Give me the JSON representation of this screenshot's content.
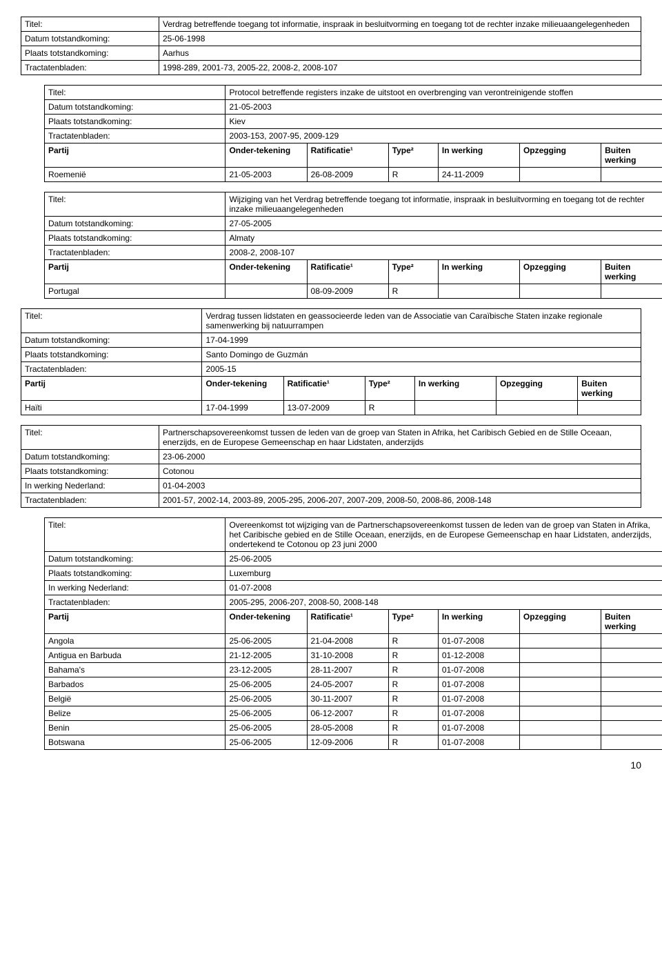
{
  "labels": {
    "titel": "Titel:",
    "datum": "Datum totstandkoming:",
    "plaats": "Plaats totstandkoming:",
    "tract": "Tractatenbladen:",
    "inwerkNL": "In werking Nederland:",
    "partij": "Partij",
    "onder": "Onder-tekening",
    "rat": "Ratificatie¹",
    "type": "Type²",
    "inwerk": "In werking",
    "opz": "Opzegging",
    "buiten": "Buiten werking"
  },
  "b1": {
    "titel": "Verdrag betreffende toegang tot informatie, inspraak in besluitvorming en toegang tot de rechter inzake milieuaangelegenheden",
    "datum": "25-06-1998",
    "plaats": "Aarhus",
    "tract": "1998-289, 2001-73, 2005-22, 2008-2, 2008-107"
  },
  "b1a": {
    "titel": "Protocol betreffende registers inzake de uitstoot en overbrenging van verontreinigende stoffen",
    "datum": "21-05-2003",
    "plaats": "Kiev",
    "tract": "2003-153, 2007-95, 2009-129",
    "rows": [
      {
        "p": "Roemenië",
        "o": "21-05-2003",
        "r": "26-08-2009",
        "t": "R",
        "i": "24-11-2009",
        "z": "",
        "b": ""
      }
    ]
  },
  "b1b": {
    "titel": "Wijziging van het Verdrag betreffende toegang tot informatie, inspraak in besluitvorming en toegang tot de rechter inzake milieuaangelegenheden",
    "datum": "27-05-2005",
    "plaats": "Almaty",
    "tract": "2008-2, 2008-107",
    "rows": [
      {
        "p": "Portugal",
        "o": "",
        "r": "08-09-2009",
        "t": "R",
        "i": "",
        "z": "",
        "b": ""
      }
    ]
  },
  "b2": {
    "titel": "Verdrag tussen lidstaten en geassocieerde leden van de Associatie van Caraïbische Staten inzake regionale samenwerking bij natuurrampen",
    "datum": "17-04-1999",
    "plaats": "Santo Domingo de Guzmán",
    "tract": "2005-15",
    "rows": [
      {
        "p": "Haïti",
        "o": "17-04-1999",
        "r": "13-07-2009",
        "t": "R",
        "i": "",
        "z": "",
        "b": ""
      }
    ]
  },
  "b3": {
    "titel": "Partnerschapsovereenkomst tussen de leden van de groep van Staten in Afrika, het Caribisch Gebied en de Stille Oceaan, enerzijds, en de Europese Gemeenschap en haar Lidstaten, anderzijds",
    "datum": "23-06-2000",
    "plaats": "Cotonou",
    "inwerkNL": "01-04-2003",
    "tract": "2001-57, 2002-14, 2003-89, 2005-295, 2006-207, 2007-209, 2008-50, 2008-86, 2008-148"
  },
  "b3a": {
    "titel": "Overeenkomst tot wijziging van de Partnerschapsovereenkomst tussen de leden van de groep van Staten in Afrika, het Caribische gebied en de Stille Oceaan, enerzijds, en de Europese Gemeenschap en haar Lidstaten, anderzijds, ondertekend te Cotonou op 23 juni 2000",
    "datum": "25-06-2005",
    "plaats": "Luxemburg",
    "inwerkNL": "01-07-2008",
    "tract": "2005-295, 2006-207, 2008-50, 2008-148",
    "rows": [
      {
        "p": "Angola",
        "o": "25-06-2005",
        "r": "21-04-2008",
        "t": "R",
        "i": "01-07-2008",
        "z": "",
        "b": ""
      },
      {
        "p": "Antigua en Barbuda",
        "o": "21-12-2005",
        "r": "31-10-2008",
        "t": "R",
        "i": "01-12-2008",
        "z": "",
        "b": ""
      },
      {
        "p": "Bahama's",
        "o": "23-12-2005",
        "r": "28-11-2007",
        "t": "R",
        "i": "01-07-2008",
        "z": "",
        "b": ""
      },
      {
        "p": "Barbados",
        "o": "25-06-2005",
        "r": "24-05-2007",
        "t": "R",
        "i": "01-07-2008",
        "z": "",
        "b": ""
      },
      {
        "p": "België",
        "o": "25-06-2005",
        "r": "30-11-2007",
        "t": "R",
        "i": "01-07-2008",
        "z": "",
        "b": ""
      },
      {
        "p": "Belize",
        "o": "25-06-2005",
        "r": "06-12-2007",
        "t": "R",
        "i": "01-07-2008",
        "z": "",
        "b": ""
      },
      {
        "p": "Benin",
        "o": "25-06-2005",
        "r": "28-05-2008",
        "t": "R",
        "i": "01-07-2008",
        "z": "",
        "b": ""
      },
      {
        "p": "Botswana",
        "o": "25-06-2005",
        "r": "12-09-2006",
        "t": "R",
        "i": "01-07-2008",
        "z": "",
        "b": ""
      }
    ]
  },
  "pagenum": "10"
}
